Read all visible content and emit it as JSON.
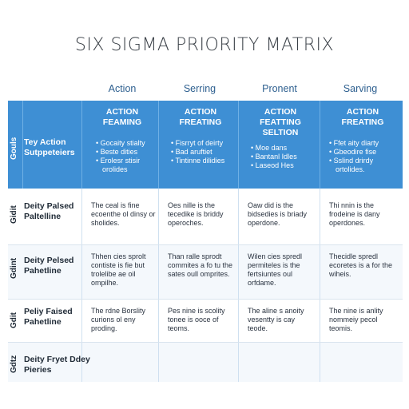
{
  "title": "SIX SIGMA PRIORITY MATRIX",
  "column_headers": [
    "Action",
    "Serring",
    "Pronent",
    "Sarving"
  ],
  "header_row": {
    "side_label": "Gouls",
    "label": "Tey Action Sutppeteiers",
    "cells": [
      {
        "title": "ACTION FEAMING",
        "bullets": [
          "Gocaity stialty",
          "Beste dities",
          "Erolesr stisir",
          "orolides"
        ]
      },
      {
        "title": "ACTION FREATING",
        "bullets": [
          "Fisrryt of deirty",
          "Bad aruftiet",
          "Tintinne dilidies"
        ]
      },
      {
        "title": "ACTION FEATTING SELTION",
        "bullets": [
          "Moe dans",
          "Bantanl Idles",
          "Laseod Hes"
        ]
      },
      {
        "title": "ACTION FREATING",
        "bullets": [
          "Ffet aity diarty",
          "Gbeodire fise",
          "Sslind drirdy",
          "ortolides."
        ]
      }
    ]
  },
  "rows": [
    {
      "side_label": "Gidit",
      "label": "Deity Palsed Paltelline",
      "cells": [
        "The ceal is fine ecoenthe ol dinsy or sholides.",
        "Oes nille is the tecedike is briddy operoches.",
        "Oaw did is the bidsedies is briady operdone.",
        "Thi nnin is the frodeine is dany operdones."
      ]
    },
    {
      "side_label": "Gdint",
      "label": "Deity Pelsed Pahetline",
      "cells": [
        "Thhen cies sprolt contiste is fie but trolelibe ae oil ompilhe.",
        "Than ralle sprodt commites a fo tu the sates oull omprites.",
        "Wilen cies spredl permiteles is the fertsiuntes oul orfdame.",
        "Thecidle spredl ecoretes is a for the wiheis."
      ]
    },
    {
      "side_label": "Gdit",
      "label": "Peliy Faised Pahetline",
      "cells": [
        "The rdne Borslity curions ol eny proding.",
        "Pes nine is scolity tonee is ooce of teoms.",
        "The aline s anoity vesentty is cay teode.",
        "The nine is anlity nommeiy pecol teomis."
      ]
    },
    {
      "side_label": "Gdtz",
      "label": "Deity Fryet Ddey Pieries",
      "cells": [
        "",
        "",
        "",
        ""
      ]
    }
  ]
}
